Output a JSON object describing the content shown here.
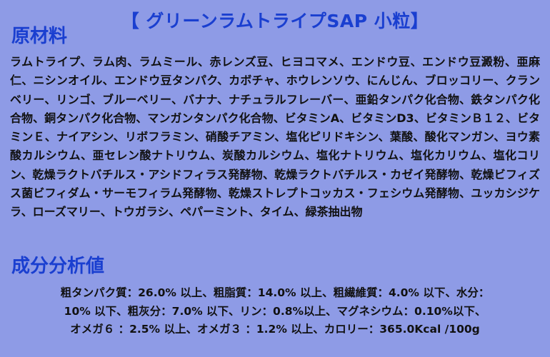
{
  "title": "【 グリーンラムトライプSAP 小粒】",
  "ingredients": {
    "heading": "原材料",
    "text": "ラムトライプ、ラム肉、ラムミール、赤レンズ豆、ヒヨコマメ、エンドウ豆、エンドウ豆澱粉、亜麻仁、ニシンオイル、エンドウ豆タンパク、カボチャ、ホウレンソウ、にんじん、ブロッコリー、クランベリー、リンゴ、ブルーベリー、バナナ、ナチュラルフレーバー、亜鉛タンパク化合物、鉄タンパク化合物、銅タンパク化合物、マンガンタンパク化合物、ビタミンA、ビタミンD3、ビタミンＢ１２、ビタミンＥ、ナイアシン、リボフラミン、硝酸チアミン、塩化ピリドキシン、葉酸、酸化マンガン、ヨウ素酸カルシウム、亜セレン酸ナトリウム、炭酸カルシウム、塩化ナトリウム、塩化カリウム、塩化コリン、乾燥ラクトバチルス・アシドフィラス発酵物、乾燥ラクトバチルス・カゼイ発酵物、乾燥ビフィズス菌ビフィダム・サーモフィラム発酵物、乾燥ストレプトコッカス・フェシウム発酵物、ユッカシジケラ、ローズマリー、トウガラシ、ペパーミント、タイム、緑茶抽出物"
  },
  "analysis": {
    "heading": "成分分析値",
    "lines": [
      "粗タンパク質：26.0% 以上、粗脂質：14.0% 以上、粗繊維質：4.0% 以下、水分：",
      "10% 以下、粗灰分：7.0% 以下、リン：0.8%以上、マグネシウム：0.10%以下、",
      "オメガ６ ：2.5% 以上、オメガ３ ：1.2% 以上、カロリー：365.0Kcal /100g"
    ]
  }
}
